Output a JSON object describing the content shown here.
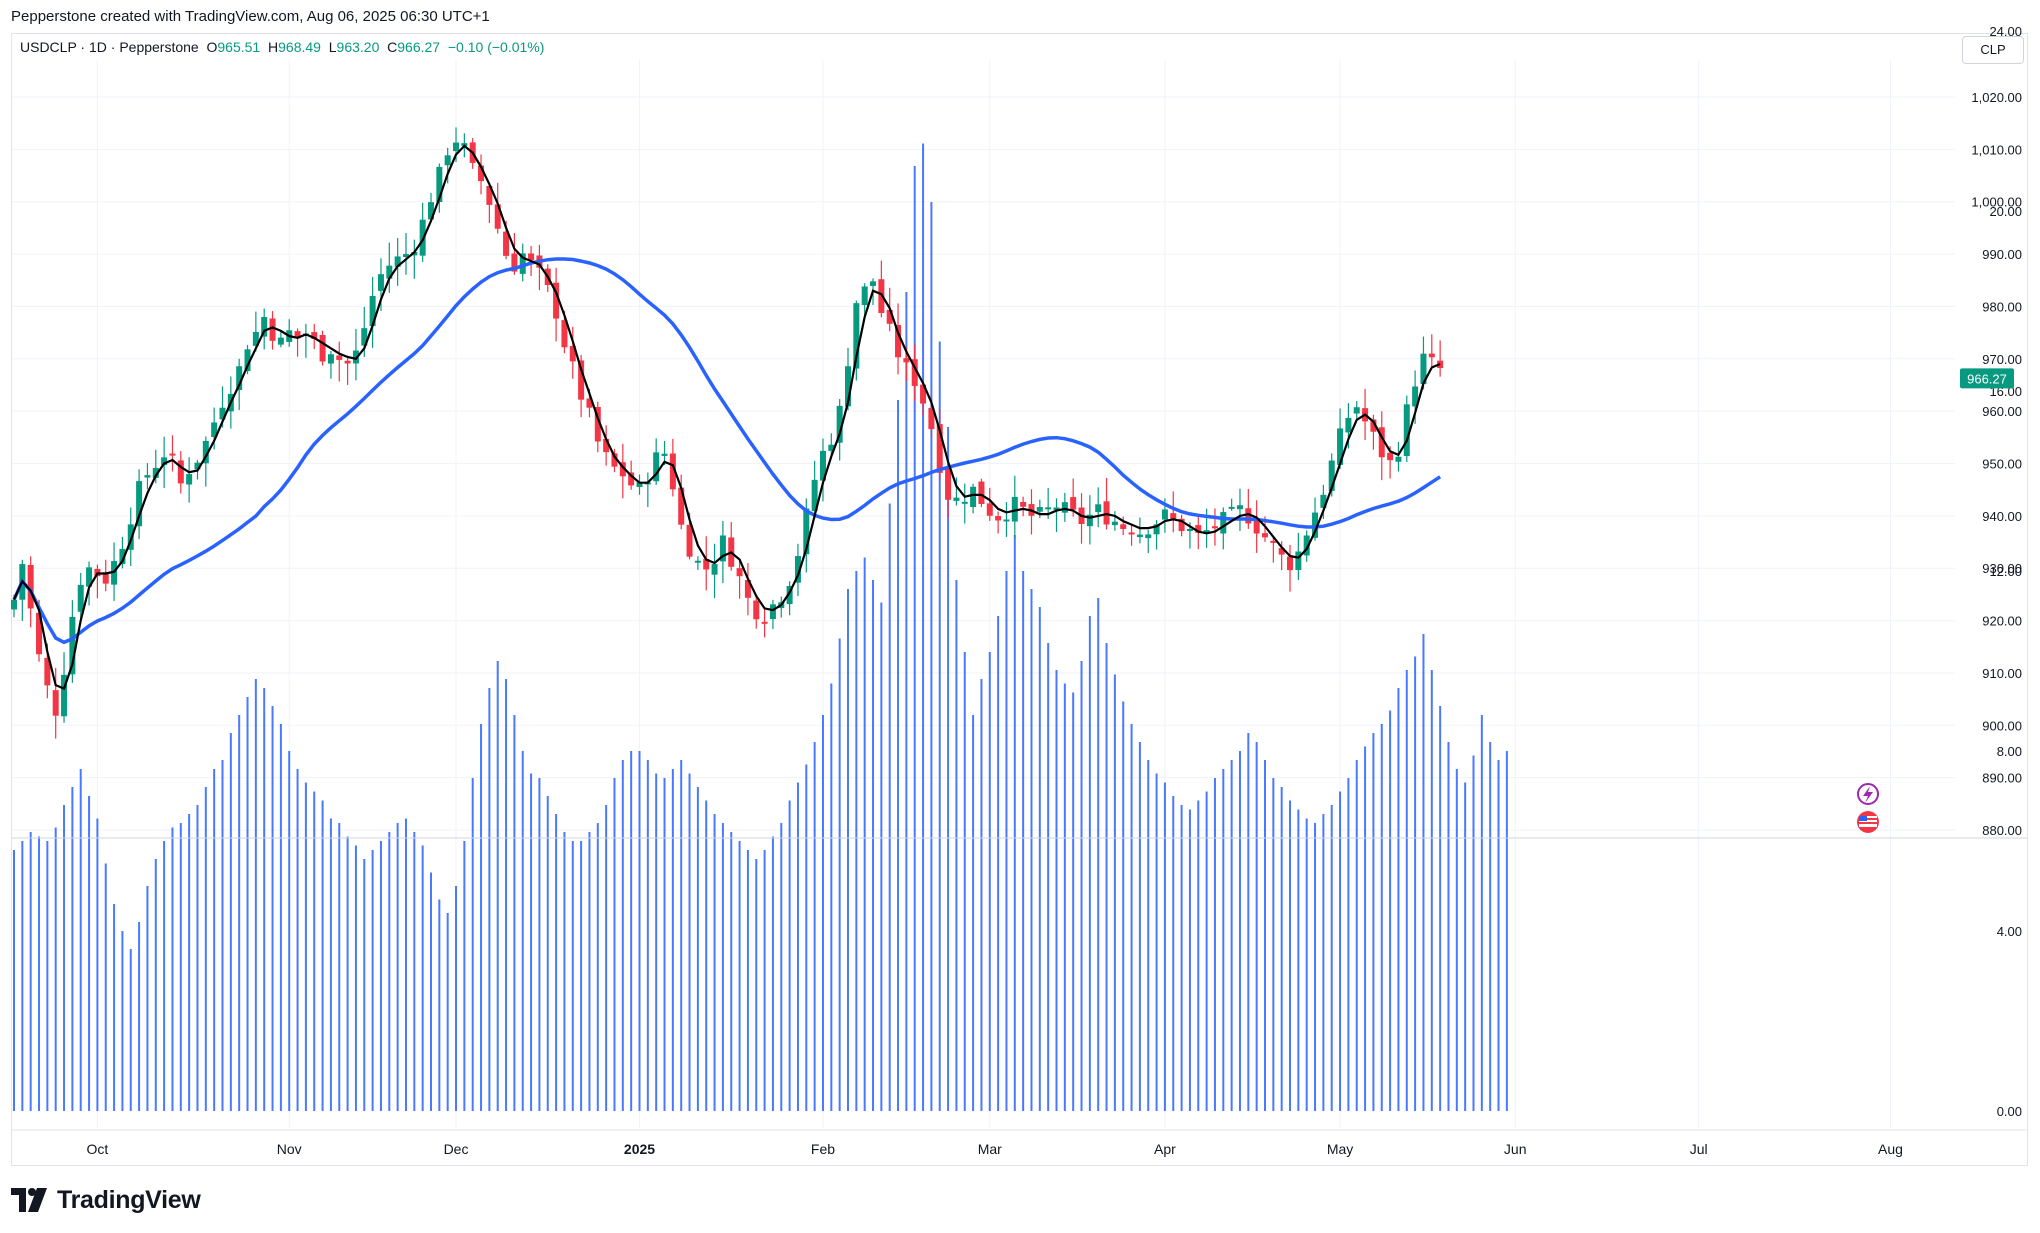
{
  "caption": "Pepperstone created with TradingView.com, Aug 06, 2025 06:30 UTC+1",
  "legend": {
    "symbol": "USDCLP · 1D · Pepperstone",
    "open_label": "O",
    "open": "965.51",
    "high_label": "H",
    "high": "968.49",
    "low_label": "L",
    "low": "963.20",
    "close_label": "C",
    "close": "966.27",
    "change": "−0.10 (−0.01%)"
  },
  "currency": "CLP",
  "last_price_label": "966.27",
  "brand": "TradingView",
  "colors": {
    "up": "#089981",
    "down": "#f23645",
    "ma_fast": "#000000",
    "ma_slow": "#2962ff",
    "volume": "#2962ff",
    "grid": "#f0f3fa"
  },
  "icons": [
    "tradingview-logo-icon",
    "lightning-event-icon",
    "us-flag-event-icon"
  ],
  "chart_data": {
    "type": "candlestick",
    "symbol": "USDCLP",
    "interval": "1D",
    "price_ticks": [
      "1,020.00",
      "1,010.00",
      "1,000.00",
      "990.00",
      "980.00",
      "970.00",
      "960.00",
      "950.00",
      "940.00",
      "930.00",
      "920.00",
      "910.00",
      "900.00",
      "890.00",
      "880.00"
    ],
    "price_range": [
      878,
      1028
    ],
    "volume_ticks": [
      "24.00",
      "20.00",
      "16.00",
      "12.00",
      "8.00",
      "4.00",
      "0.00"
    ],
    "volume_range": [
      0,
      24
    ],
    "x_labels": [
      {
        "label": "Oct",
        "index": 10
      },
      {
        "label": "Nov",
        "index": 33
      },
      {
        "label": "Dec",
        "index": 53
      },
      {
        "label": "2025",
        "index": 75
      },
      {
        "label": "Feb",
        "index": 97
      },
      {
        "label": "Mar",
        "index": 117
      },
      {
        "label": "Apr",
        "index": 138
      },
      {
        "label": "May",
        "index": 159
      },
      {
        "label": "Jun",
        "index": 180
      },
      {
        "label": "Jul",
        "index": 202
      },
      {
        "label": "Aug",
        "index": 225
      }
    ],
    "close_path": [
      924,
      931,
      922,
      913,
      907,
      903,
      911,
      921,
      928,
      930,
      929,
      928,
      931,
      935,
      940,
      945,
      948,
      950,
      952,
      950,
      946,
      949,
      951,
      954,
      958,
      962,
      965,
      968,
      973,
      975,
      978,
      975,
      973,
      975,
      974,
      975,
      973,
      971,
      972,
      970,
      969,
      971,
      976,
      982,
      986,
      988,
      989,
      990,
      992,
      996,
      1001,
      1005,
      1010,
      1012,
      1010,
      1006,
      1004,
      1000,
      995,
      990,
      988,
      990,
      988,
      986,
      983,
      979,
      973,
      968,
      963,
      959,
      954,
      951,
      949,
      948,
      946,
      945,
      948,
      951,
      952,
      946,
      938,
      934,
      931,
      930,
      932,
      935,
      932,
      928,
      924,
      922,
      921,
      923,
      925,
      928,
      933,
      940,
      947,
      952,
      955,
      960,
      970,
      981,
      983,
      985,
      979,
      975,
      971,
      968,
      966,
      962,
      957,
      950,
      944,
      943,
      944,
      945,
      943,
      941,
      940,
      941,
      942,
      941,
      940,
      940,
      941,
      942,
      941,
      940,
      939,
      940,
      941,
      940,
      939,
      938,
      938,
      937,
      938,
      939,
      940,
      939,
      938,
      937,
      936,
      937,
      938,
      939,
      940,
      941,
      940,
      938,
      936,
      934,
      932,
      931,
      933,
      937,
      941,
      945,
      950,
      955,
      959,
      961,
      958,
      955,
      952,
      950,
      953,
      960,
      966,
      970,
      969,
      968
    ],
    "volume": [
      5.8,
      6,
      6.2,
      6.1,
      6,
      6.3,
      6.8,
      7.2,
      7.6,
      7,
      6.5,
      5.5,
      4.6,
      4,
      3.6,
      4.2,
      5,
      5.6,
      6,
      6.3,
      6.4,
      6.6,
      6.8,
      7.2,
      7.6,
      7.8,
      8.4,
      8.8,
      9.2,
      9.6,
      9.4,
      9,
      8.6,
      8,
      7.6,
      7.3,
      7.1,
      6.9,
      6.5,
      6.4,
      6.1,
      5.9,
      5.6,
      5.8,
      6,
      6.2,
      6.4,
      6.5,
      6.2,
      5.9,
      5.3,
      4.7,
      4.4,
      5,
      6,
      7.4,
      8.6,
      9.4,
      10,
      9.6,
      8.8,
      8,
      7.5,
      7.4,
      7,
      6.6,
      6.2,
      6,
      6,
      6.2,
      6.4,
      6.8,
      7.4,
      7.8,
      8,
      8,
      7.8,
      7.5,
      7.4,
      7.6,
      7.8,
      7.5,
      7.2,
      6.9,
      6.6,
      6.4,
      6.2,
      6,
      5.8,
      5.6,
      5.8,
      6.1,
      6.4,
      6.9,
      7.3,
      7.7,
      8.2,
      8.8,
      9.5,
      10.5,
      11.6,
      12,
      12.3,
      11.8,
      11.3,
      13.5,
      15.8,
      18.2,
      21,
      21.5,
      20.2,
      17.1,
      15.2,
      11.8,
      10.2,
      8.8,
      9.6,
      10.2,
      11,
      12,
      12.8,
      12,
      11.6,
      11.2,
      10.4,
      9.8,
      9.5,
      9.3,
      10,
      11,
      11.4,
      10.4,
      9.7,
      9.1,
      8.6,
      8.2,
      7.8,
      7.5,
      7.3,
      7,
      6.8,
      6.7,
      6.9,
      7.1,
      7.4,
      7.6,
      7.8,
      8,
      8.4,
      8.2,
      7.8,
      7.4,
      7.2,
      6.9,
      6.7,
      6.5,
      6.4,
      6.6,
      6.8,
      7.1,
      7.4,
      7.8,
      8.1,
      8.4,
      8.6,
      8.9,
      9.4,
      9.8,
      10.1,
      10.6,
      9.8,
      9,
      8.2,
      7.6,
      7.3,
      7.9,
      8.8,
      8.2,
      7.8,
      8
    ]
  }
}
